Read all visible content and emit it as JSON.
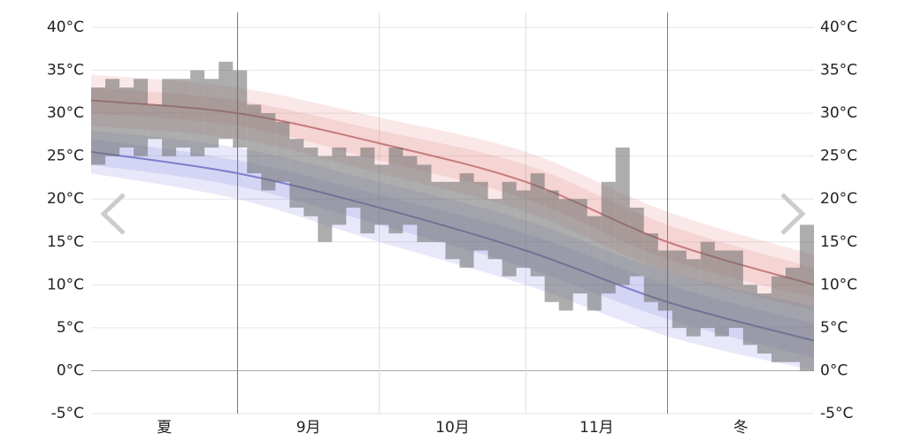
{
  "chart_data": {
    "type": "range_bar",
    "categories": [
      "夏",
      "9月",
      "10月",
      "11月",
      "冬"
    ],
    "xlim": [
      0,
      153
    ],
    "season_boundaries": [
      31,
      122
    ],
    "month_boundaries": [
      61,
      92
    ],
    "ylim": [
      -5,
      40
    ],
    "yticks": [
      {
        "value": -5,
        "label": "-5°C"
      },
      {
        "value": 0,
        "label": "0°C"
      },
      {
        "value": 5,
        "label": "5°C"
      },
      {
        "value": 10,
        "label": "10°C"
      },
      {
        "value": 15,
        "label": "15°C"
      },
      {
        "value": 20,
        "label": "20°C"
      },
      {
        "value": 25,
        "label": "25°C"
      },
      {
        "value": 30,
        "label": "30°C"
      },
      {
        "value": 35,
        "label": "35°C"
      },
      {
        "value": 40,
        "label": "40°C"
      }
    ],
    "grid": true,
    "bars": {
      "color": "rgba(105,105,105,0.55)",
      "width": 3,
      "x": [
        0,
        3,
        6,
        9,
        12,
        15,
        18,
        21,
        24,
        27,
        30,
        33,
        36,
        39,
        42,
        45,
        48,
        51,
        54,
        57,
        60,
        63,
        66,
        69,
        72,
        75,
        78,
        81,
        84,
        87,
        90,
        93,
        96,
        99,
        102,
        105,
        108,
        111,
        114,
        117,
        120,
        123,
        126,
        129,
        132,
        135,
        138,
        141,
        144,
        147,
        150
      ],
      "low": [
        24,
        25,
        26,
        25,
        27,
        25,
        26,
        25,
        26,
        27,
        26,
        23,
        21,
        22,
        19,
        18,
        15,
        17,
        19,
        16,
        17,
        16,
        17,
        15,
        15,
        13,
        12,
        14,
        13,
        11,
        12,
        11,
        8,
        7,
        9,
        7,
        9,
        10,
        11,
        8,
        7,
        5,
        4,
        5,
        4,
        5,
        3,
        2,
        1,
        1,
        0
      ],
      "high": [
        33,
        34,
        33,
        34,
        31,
        34,
        34,
        35,
        34,
        36,
        35,
        31,
        30,
        29,
        27,
        26,
        25,
        26,
        25,
        26,
        24,
        26,
        25,
        24,
        22,
        22,
        23,
        22,
        20,
        22,
        21,
        23,
        21,
        20,
        20,
        18,
        22,
        26,
        19,
        16,
        14,
        14,
        13,
        15,
        14,
        14,
        10,
        9,
        11,
        12,
        17
      ]
    },
    "normals": [
      {
        "color": "#c77a7a",
        "band_color": "rgba(225,110,110,0.16)",
        "x": [
          0,
          31,
          61,
          92,
          122,
          153
        ],
        "values": [
          31.5,
          30,
          26.5,
          22,
          15,
          10
        ],
        "p25": [
          30,
          28.5,
          24.5,
          20,
          13,
          8.5
        ],
        "p75": [
          33,
          31.5,
          28,
          24,
          17,
          12
        ],
        "p10": [
          28.5,
          27,
          23,
          18.5,
          11.5,
          7
        ],
        "p90": [
          34.5,
          33,
          29.5,
          25.5,
          18.5,
          13.5
        ]
      },
      {
        "color": "#7e7ecb",
        "band_color": "rgba(110,110,225,0.16)",
        "x": [
          0,
          31,
          61,
          92,
          122,
          153
        ],
        "values": [
          25.5,
          23,
          19,
          14,
          8,
          3.5
        ],
        "p25": [
          24,
          21.5,
          17,
          12,
          6,
          1.5
        ],
        "p75": [
          27,
          24.5,
          20.5,
          16,
          10,
          5.5
        ],
        "p10": [
          23,
          20,
          15,
          10,
          4,
          0
        ],
        "p90": [
          28,
          26,
          22,
          17.5,
          11.5,
          7.5
        ]
      }
    ]
  }
}
